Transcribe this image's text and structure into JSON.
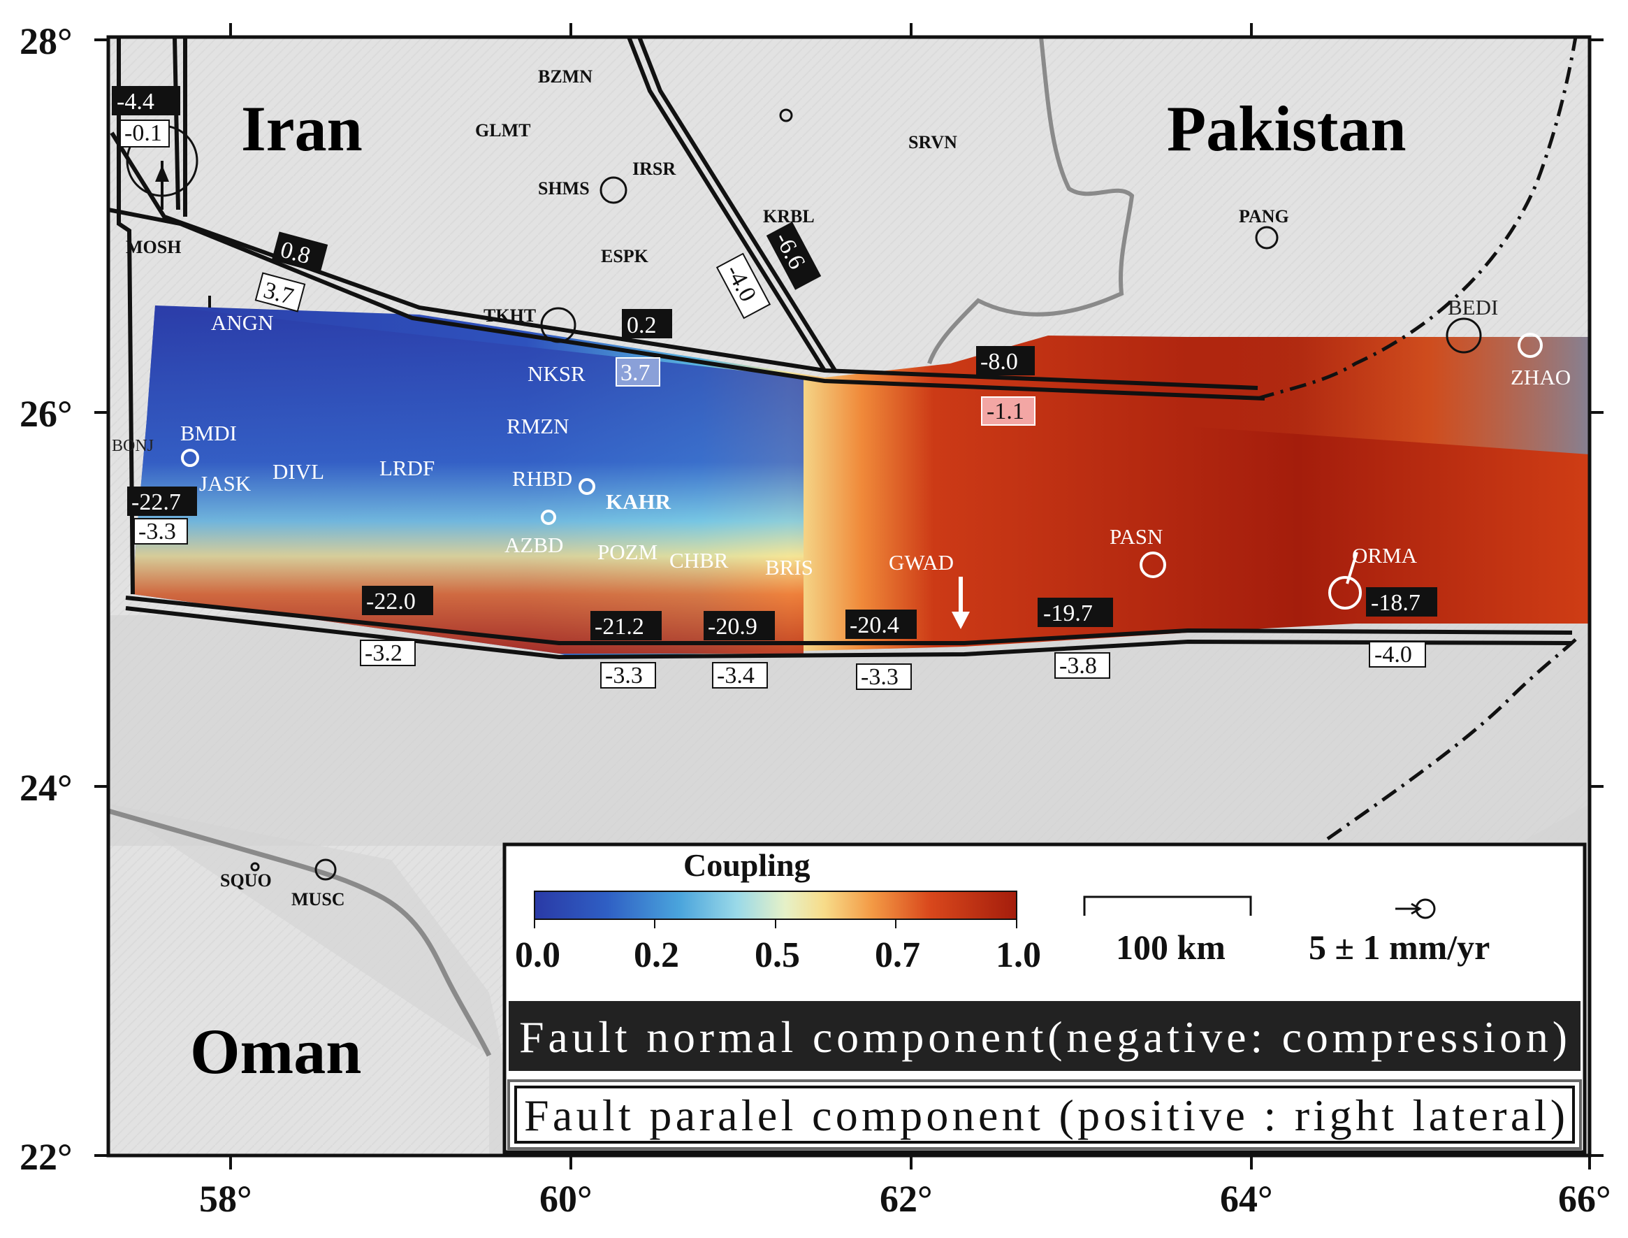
{
  "map": {
    "lon_ticks": [
      "58°",
      "60°",
      "62°",
      "64°",
      "66°"
    ],
    "lat_ticks": [
      "28°",
      "26°",
      "24°",
      "22°"
    ],
    "countries": [
      "Iran",
      "Pakistan",
      "Oman"
    ],
    "stations_dark": [
      "BZMN",
      "GLMT",
      "IRSR",
      "SHMS",
      "SRVN",
      "KRBL",
      "PANG",
      "ESPK",
      "MOSH",
      "TKHT",
      "SQUO",
      "MUSC"
    ],
    "stations_light": [
      "ANGN",
      "NKSR",
      "RMZN",
      "BMDI",
      "DIVL",
      "LRDF",
      "RHBD",
      "KAHR",
      "JASK",
      "AZBD",
      "POZM",
      "CHBR",
      "BRIS",
      "GWAD",
      "PASN",
      "ORMA",
      "BEDI",
      "ZHAO",
      "BONJ"
    ],
    "normal_labels": [
      "-4.4",
      "0.8",
      "-6.6",
      "0.2",
      "-8.0",
      "-22.7",
      "-22.0",
      "-21.2",
      "-20.9",
      "-20.4",
      "-19.7",
      "-18.7"
    ],
    "parallel_labels": [
      "-0.1",
      "3.7",
      "-4.0",
      "3.7",
      "-1.1",
      "-3.3",
      "-3.2",
      "-3.3",
      "-3.4",
      "-3.3",
      "-3.8",
      "-4.0"
    ],
    "colors": {
      "coupling_low": "#2a3ea8",
      "coupling_mid": "#f5e79a",
      "coupling_high": "#a8200e",
      "terrain": "#dcdcdc",
      "sea": "#c9c9c9",
      "normal_label_bg": "#111111",
      "parallel_label_bg": "#ffffff"
    },
    "legend": {
      "title": "Coupling",
      "ticks": [
        "0.0",
        "0.2",
        "0.5",
        "0.7",
        "1.0"
      ],
      "scale_text": "100 km",
      "velocity_text": "5 ± 1 mm/yr",
      "normal_text": "Fault normal component(negative: compression)",
      "parallel_text": "Fault paralel component (positive : right lateral)"
    }
  }
}
